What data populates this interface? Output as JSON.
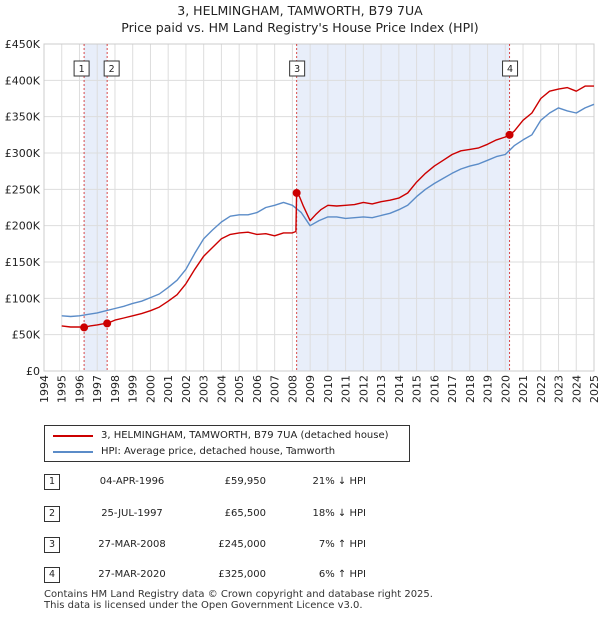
{
  "title_line1": "3, HELMINGHAM, TAMWORTH, B79 7UA",
  "title_line2": "Price paid vs. HM Land Registry's House Price Index (HPI)",
  "colors": {
    "property": "#cc0000",
    "hpi": "#5b8cc8",
    "shade": "#e8eefa",
    "grid": "#dddddd",
    "marker_line": "#cc0000"
  },
  "chart_data": {
    "type": "line",
    "title": "Price paid vs. HM Land Registry's House Price Index (HPI)",
    "xlabel": "",
    "ylabel": "",
    "xlim": [
      1994,
      2025
    ],
    "ylim": [
      0,
      450000
    ],
    "x_ticks": [
      "1994",
      "1995",
      "1996",
      "1997",
      "1998",
      "1999",
      "2000",
      "2001",
      "2002",
      "2003",
      "2004",
      "2005",
      "2006",
      "2007",
      "2008",
      "2009",
      "2010",
      "2011",
      "2012",
      "2013",
      "2014",
      "2015",
      "2016",
      "2017",
      "2018",
      "2019",
      "2020",
      "2021",
      "2022",
      "2023",
      "2024",
      "2025"
    ],
    "y_ticks": [
      {
        "value": 0,
        "label": "£0"
      },
      {
        "value": 50000,
        "label": "£50K"
      },
      {
        "value": 100000,
        "label": "£100K"
      },
      {
        "value": 150000,
        "label": "£150K"
      },
      {
        "value": 200000,
        "label": "£200K"
      },
      {
        "value": 250000,
        "label": "£250K"
      },
      {
        "value": 300000,
        "label": "£300K"
      },
      {
        "value": 350000,
        "label": "£350K"
      },
      {
        "value": 400000,
        "label": "£400K"
      },
      {
        "value": 450000,
        "label": "£450K"
      }
    ],
    "series": [
      {
        "name": "3, HELMINGHAM, TAMWORTH, B79 7UA (detached house)",
        "x": [
          1995.0,
          1995.5,
          1996.0,
          1996.26,
          1996.6,
          1997.0,
          1997.3,
          1997.56,
          1998.0,
          1998.5,
          1999.0,
          1999.5,
          2000.0,
          2000.5,
          2001.0,
          2001.5,
          2002.0,
          2002.5,
          2003.0,
          2003.5,
          2004.0,
          2004.5,
          2005.0,
          2005.5,
          2006.0,
          2006.5,
          2007.0,
          2007.5,
          2008.0,
          2008.2,
          2008.24,
          2008.4,
          2008.6,
          2009.0,
          2009.3,
          2009.6,
          2010.0,
          2010.5,
          2011.0,
          2011.5,
          2012.0,
          2012.5,
          2013.0,
          2013.5,
          2014.0,
          2014.5,
          2015.0,
          2015.5,
          2016.0,
          2016.5,
          2017.0,
          2017.5,
          2018.0,
          2018.5,
          2019.0,
          2019.5,
          2020.0,
          2020.24,
          2020.5,
          2021.0,
          2021.5,
          2022.0,
          2022.5,
          2023.0,
          2023.5,
          2024.0,
          2024.5,
          2025.0
        ],
        "values": [
          62000,
          60500,
          60500,
          59950,
          62000,
          63500,
          64800,
          65500,
          70000,
          73000,
          76000,
          79000,
          83000,
          88000,
          96000,
          105000,
          120000,
          140000,
          158000,
          170000,
          182000,
          188000,
          190000,
          191000,
          188000,
          189000,
          186000,
          190000,
          190000,
          192000,
          245000,
          240000,
          228000,
          207000,
          215000,
          222000,
          228000,
          227000,
          228000,
          229000,
          232000,
          230000,
          233000,
          235000,
          238000,
          245000,
          260000,
          272000,
          282000,
          290000,
          298000,
          303000,
          305000,
          307000,
          312000,
          318000,
          322000,
          325000,
          330000,
          345000,
          355000,
          375000,
          385000,
          388000,
          390000,
          385000,
          392000,
          392000
        ]
      },
      {
        "name": "HPI: Average price, detached house, Tamworth",
        "x": [
          1995.0,
          1995.5,
          1996.0,
          1996.5,
          1997.0,
          1997.5,
          1998.0,
          1998.5,
          1999.0,
          1999.5,
          2000.0,
          2000.5,
          2001.0,
          2001.5,
          2002.0,
          2002.5,
          2003.0,
          2003.5,
          2004.0,
          2004.5,
          2005.0,
          2005.5,
          2006.0,
          2006.5,
          2007.0,
          2007.5,
          2008.0,
          2008.5,
          2009.0,
          2009.5,
          2010.0,
          2010.5,
          2011.0,
          2011.5,
          2012.0,
          2012.5,
          2013.0,
          2013.5,
          2014.0,
          2014.5,
          2015.0,
          2015.5,
          2016.0,
          2016.5,
          2017.0,
          2017.5,
          2018.0,
          2018.5,
          2019.0,
          2019.5,
          2020.0,
          2020.5,
          2021.0,
          2021.5,
          2022.0,
          2022.5,
          2023.0,
          2023.5,
          2024.0,
          2024.5,
          2025.0
        ],
        "values": [
          76000,
          75000,
          76000,
          78000,
          80000,
          83000,
          86000,
          89000,
          93000,
          96000,
          101000,
          106000,
          115000,
          125000,
          140000,
          162000,
          182000,
          194000,
          205000,
          213000,
          215000,
          215000,
          218000,
          225000,
          228000,
          232000,
          228000,
          218000,
          200000,
          207000,
          212000,
          212000,
          210000,
          211000,
          212000,
          211000,
          214000,
          217000,
          222000,
          228000,
          240000,
          250000,
          258000,
          265000,
          272000,
          278000,
          282000,
          285000,
          290000,
          295000,
          298000,
          310000,
          318000,
          325000,
          345000,
          355000,
          362000,
          358000,
          355000,
          362000,
          367000
        ]
      }
    ],
    "transactions": [
      {
        "id": "1",
        "x": 1996.26,
        "value": 59950
      },
      {
        "id": "2",
        "x": 1997.56,
        "value": 65500
      },
      {
        "id": "3",
        "x": 2008.24,
        "value": 245000
      },
      {
        "id": "4",
        "x": 2020.24,
        "value": 325000
      }
    ],
    "shaded_ranges": [
      [
        1996.26,
        1997.56
      ],
      [
        2008.24,
        2020.24
      ]
    ]
  },
  "legend": {
    "property_label": "3, HELMINGHAM, TAMWORTH, B79 7UA (detached house)",
    "hpi_label": "HPI: Average price, detached house, Tamworth"
  },
  "transactions_table": [
    {
      "num": "1",
      "date": "04-APR-1996",
      "price": "£59,950",
      "hpi": "21% ↓ HPI"
    },
    {
      "num": "2",
      "date": "25-JUL-1997",
      "price": "£65,500",
      "hpi": "18% ↓ HPI"
    },
    {
      "num": "3",
      "date": "27-MAR-2008",
      "price": "£245,000",
      "hpi": "7% ↑ HPI"
    },
    {
      "num": "4",
      "date": "27-MAR-2020",
      "price": "£325,000",
      "hpi": "6% ↑ HPI"
    }
  ],
  "footer_line1": "Contains HM Land Registry data © Crown copyright and database right 2025.",
  "footer_line2": "This data is licensed under the Open Government Licence v3.0."
}
